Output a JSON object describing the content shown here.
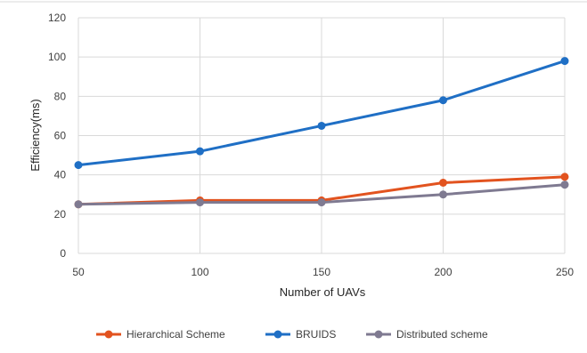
{
  "chart_data": {
    "type": "line",
    "title": "",
    "xlabel": "Number of UAVs",
    "ylabel": "Efficiency(ms)",
    "x": [
      50,
      100,
      150,
      200,
      250
    ],
    "xticks": [
      "50",
      "100",
      "150",
      "200",
      "250"
    ],
    "ylim": [
      0,
      120
    ],
    "yticks": [
      "0",
      "20",
      "40",
      "60",
      "80",
      "100",
      "120"
    ],
    "grid": true,
    "legend_position": "bottom",
    "series": [
      {
        "name": "Hierarchical Scheme",
        "color": "#e2531f",
        "values": [
          25,
          27,
          27,
          36,
          39
        ]
      },
      {
        "name": "BRUIDS",
        "color": "#1f6fc5",
        "values": [
          45,
          52,
          65,
          78,
          98
        ]
      },
      {
        "name": "Distributed scheme",
        "color": "#7f7a91",
        "values": [
          25,
          26,
          26,
          30,
          35
        ]
      }
    ]
  }
}
